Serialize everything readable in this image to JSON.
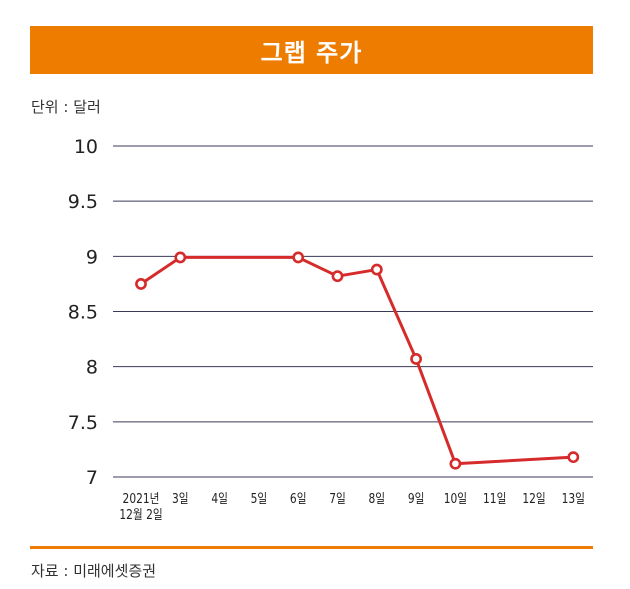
{
  "header": {
    "title": "그랩 주가"
  },
  "unit_label": "단위 : 달러",
  "source_label": "자료 : 미래에셋증권",
  "colors": {
    "accent": "#ee7c00",
    "line": "#d62b2b",
    "grid": "#3a3a5c"
  },
  "chart_data": {
    "type": "line",
    "title": "그랩 주가",
    "xlabel": "",
    "ylabel": "단위 : 달러",
    "categories": [
      "2021년 12월 2일",
      "3일",
      "4일",
      "5일",
      "6일",
      "7일",
      "8일",
      "9일",
      "10일",
      "11일",
      "12일",
      "13일"
    ],
    "x_ticks": [
      {
        "lines": [
          "2021년",
          "12월 2일"
        ]
      },
      {
        "lines": [
          "3일"
        ]
      },
      {
        "lines": [
          "4일"
        ]
      },
      {
        "lines": [
          "5일"
        ]
      },
      {
        "lines": [
          "6일"
        ]
      },
      {
        "lines": [
          "7일"
        ]
      },
      {
        "lines": [
          "8일"
        ]
      },
      {
        "lines": [
          "9일"
        ]
      },
      {
        "lines": [
          "10일"
        ]
      },
      {
        "lines": [
          "11일"
        ]
      },
      {
        "lines": [
          "12일"
        ]
      },
      {
        "lines": [
          "13일"
        ]
      }
    ],
    "y_ticks": [
      "10",
      "9.5",
      "9",
      "8.5",
      "8",
      "7.5",
      "7"
    ],
    "ylim": [
      7,
      10
    ],
    "grid": true,
    "series": [
      {
        "points": [
          {
            "x": "2021년 12월 2일",
            "y": 8.75
          },
          {
            "x": "3일",
            "y": 8.99
          },
          {
            "x": "6일",
            "y": 8.99
          },
          {
            "x": "7일",
            "y": 8.82
          },
          {
            "x": "8일",
            "y": 8.88
          },
          {
            "x": "9일",
            "y": 8.07
          },
          {
            "x": "10일",
            "y": 7.12
          },
          {
            "x": "13일",
            "y": 7.18
          }
        ]
      }
    ]
  }
}
